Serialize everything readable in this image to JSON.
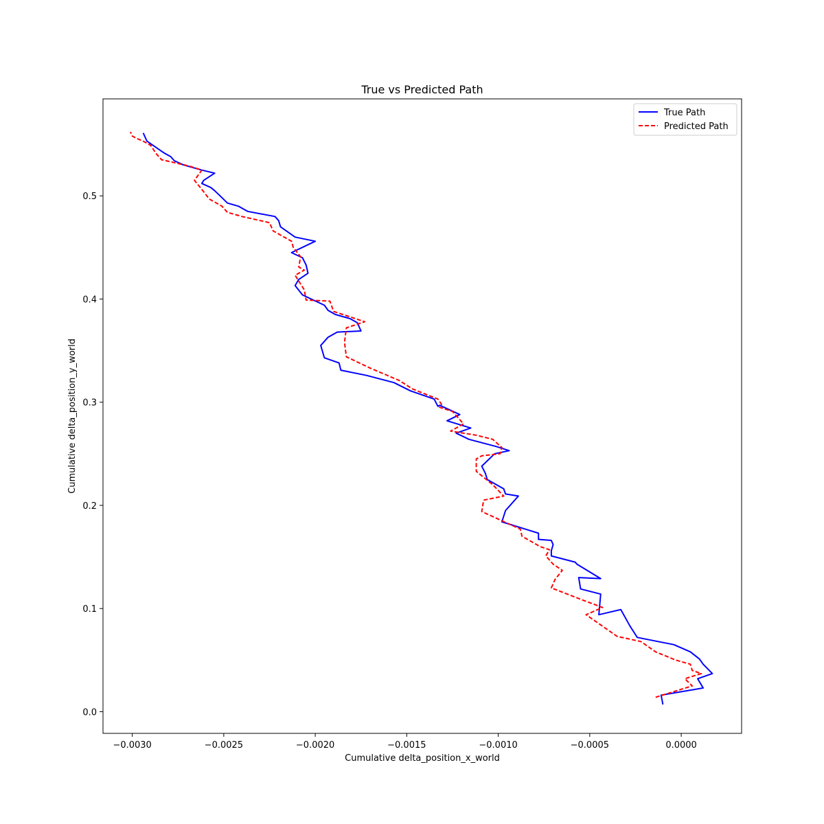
{
  "chart_data": {
    "type": "line",
    "title": "True vs Predicted Path",
    "xlabel": "Cumulative delta_position_x_world",
    "ylabel": "Cumulative delta_position_y_world",
    "xlim": [
      -0.00316,
      0.00033
    ],
    "ylim": [
      -0.021,
      0.594
    ],
    "xticks": [
      -0.003,
      -0.0025,
      -0.002,
      -0.0015,
      -0.001,
      -0.0005,
      0.0
    ],
    "xtick_labels": [
      "−0.0030",
      "−0.0025",
      "−0.0020",
      "−0.0015",
      "−0.0010",
      "−0.0005",
      "0.0000"
    ],
    "yticks": [
      0.0,
      0.1,
      0.2,
      0.3,
      0.4,
      0.5
    ],
    "ytick_labels": [
      "0.0",
      "0.1",
      "0.2",
      "0.3",
      "0.4",
      "0.5"
    ],
    "grid": false,
    "legend_position": "top-right",
    "series": [
      {
        "name": "True Path",
        "color": "#0000ff",
        "style": "solid",
        "x": [
          -0.0001,
          -0.00011,
          0.00012,
          9e-05,
          0.00017,
          0.00012,
          0.0001,
          5e-05,
          -4e-05,
          -0.00024,
          -0.00028,
          -0.00033,
          -0.00045,
          -0.00044,
          -0.00055,
          -0.00056,
          -0.00044,
          -0.00057,
          -0.00058,
          -0.00071,
          -0.00071,
          -0.0007,
          -0.00071,
          -0.00078,
          -0.00078,
          -0.00098,
          -0.00096,
          -0.00089,
          -0.00096,
          -0.00097,
          -0.00106,
          -0.00107,
          -0.00109,
          -0.00102,
          -0.00094,
          -0.00101,
          -0.00116,
          -0.00123,
          -0.00115,
          -0.00128,
          -0.00121,
          -0.00132,
          -0.00133,
          -0.00135,
          -0.00148,
          -0.00157,
          -0.00172,
          -0.00186,
          -0.00187,
          -0.00195,
          -0.00197,
          -0.00193,
          -0.00188,
          -0.00175,
          -0.00177,
          -0.00181,
          -0.00189,
          -0.00193,
          -0.00195,
          -0.00207,
          -0.00211,
          -0.00209,
          -0.00204,
          -0.00205,
          -0.00207,
          -0.00213,
          -0.002,
          -0.00211,
          -0.00219,
          -0.0022,
          -0.00222,
          -0.00237,
          -0.00242,
          -0.00248,
          -0.00252,
          -0.00255,
          -0.00257,
          -0.00262,
          -0.00261,
          -0.00255,
          -0.00262,
          -0.00272,
          -0.00277,
          -0.00279,
          -0.00283,
          -0.00292,
          -0.00294
        ],
        "y": [
          0.007,
          0.016,
          0.023,
          0.032,
          0.037,
          0.046,
          0.051,
          0.058,
          0.065,
          0.072,
          0.083,
          0.099,
          0.094,
          0.114,
          0.119,
          0.13,
          0.129,
          0.143,
          0.145,
          0.151,
          0.156,
          0.162,
          0.166,
          0.167,
          0.173,
          0.184,
          0.195,
          0.209,
          0.211,
          0.216,
          0.225,
          0.231,
          0.238,
          0.25,
          0.253,
          0.257,
          0.264,
          0.27,
          0.275,
          0.282,
          0.288,
          0.297,
          0.296,
          0.303,
          0.311,
          0.319,
          0.326,
          0.331,
          0.338,
          0.343,
          0.355,
          0.363,
          0.368,
          0.369,
          0.377,
          0.381,
          0.385,
          0.389,
          0.394,
          0.404,
          0.413,
          0.419,
          0.425,
          0.433,
          0.44,
          0.445,
          0.456,
          0.46,
          0.47,
          0.476,
          0.48,
          0.485,
          0.49,
          0.493,
          0.5,
          0.505,
          0.508,
          0.512,
          0.515,
          0.522,
          0.525,
          0.53,
          0.534,
          0.538,
          0.542,
          0.553,
          0.561
        ]
      },
      {
        "name": "Predicted Path",
        "color": "#ff0000",
        "style": "dashed",
        "x": [
          -0.00014,
          6e-05,
          2e-05,
          0.00011,
          6e-05,
          5e-05,
          -3e-05,
          -0.00014,
          -0.00022,
          -0.00035,
          -0.00052,
          -0.00043,
          -0.00055,
          -0.00071,
          -0.00069,
          -0.00065,
          -0.0007,
          -0.00074,
          -0.00072,
          -0.00077,
          -0.00087,
          -0.00088,
          -0.00109,
          -0.00108,
          -0.00097,
          -0.00103,
          -0.00112,
          -0.00112,
          -0.00109,
          -0.00099,
          -0.00098,
          -0.00103,
          -0.00112,
          -0.00126,
          -0.00119,
          -0.00125,
          -0.00132,
          -0.00131,
          -0.00133,
          -0.00147,
          -0.00154,
          -0.0017,
          -0.00183,
          -0.00184,
          -0.00183,
          -0.00173,
          -0.0019,
          -0.00192,
          -0.00205,
          -0.00206,
          -0.00211,
          -0.00206,
          -0.00209,
          -0.00208,
          -0.00212,
          -0.00213,
          -0.00223,
          -0.00225,
          -0.0024,
          -0.00248,
          -0.00251,
          -0.00258,
          -0.00261,
          -0.00266,
          -0.00262,
          -0.00269,
          -0.00284,
          -0.00287,
          -0.0029,
          -0.00294,
          -0.00298,
          -0.003,
          -0.00301
        ],
        "y": [
          0.014,
          0.025,
          0.032,
          0.037,
          0.04,
          0.046,
          0.05,
          0.058,
          0.068,
          0.073,
          0.094,
          0.101,
          0.109,
          0.12,
          0.128,
          0.137,
          0.143,
          0.151,
          0.157,
          0.16,
          0.17,
          0.177,
          0.194,
          0.205,
          0.209,
          0.22,
          0.233,
          0.245,
          0.248,
          0.25,
          0.256,
          0.264,
          0.268,
          0.272,
          0.279,
          0.291,
          0.295,
          0.298,
          0.303,
          0.313,
          0.321,
          0.333,
          0.344,
          0.358,
          0.372,
          0.378,
          0.388,
          0.398,
          0.399,
          0.409,
          0.423,
          0.428,
          0.431,
          0.441,
          0.45,
          0.456,
          0.466,
          0.474,
          0.48,
          0.484,
          0.49,
          0.497,
          0.504,
          0.515,
          0.525,
          0.529,
          0.535,
          0.541,
          0.549,
          0.553,
          0.556,
          0.558,
          0.562
        ]
      }
    ]
  }
}
